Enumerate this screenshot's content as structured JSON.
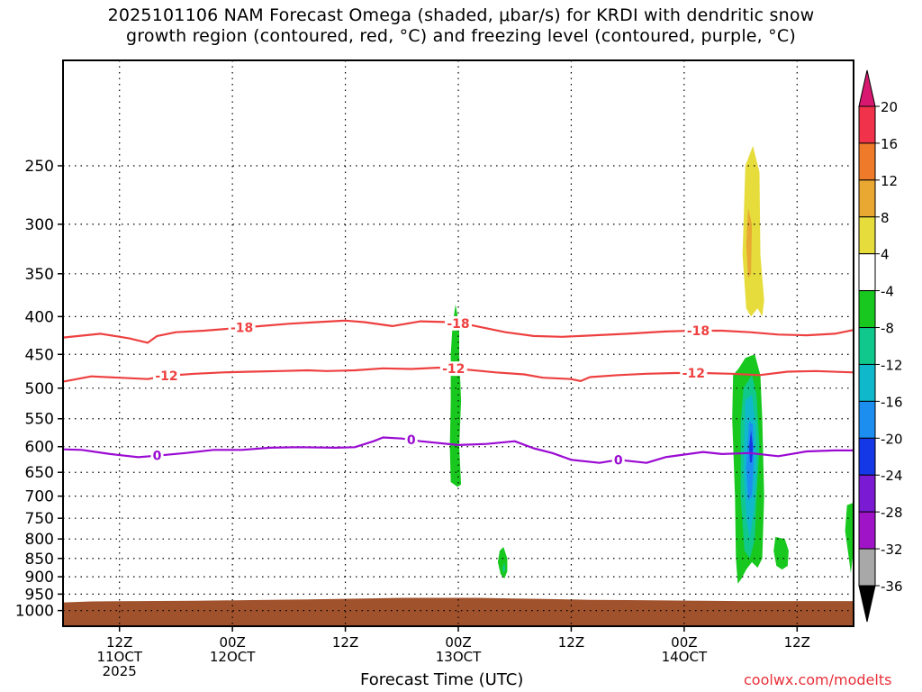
{
  "title": {
    "line1": "2025101106 NAM Forecast Omega (shaded, μbar/s) for KRDI with dendritic snow",
    "line2": "growth region (contoured, red, °C) and freezing level (contoured, purple, °C)"
  },
  "credit": "coolwx.com/modelts",
  "chart_data": {
    "type": "heatmap",
    "xlabel": "Forecast Time (UTC)",
    "ylabel": "",
    "y_scale": "log-pressure",
    "y_units": "hPa",
    "ylim": [
      1050,
      180
    ],
    "x_units": "forecast hour from 2025-10-11 06Z",
    "xlim": [
      0,
      84
    ],
    "grid": true,
    "y_ticks": [
      250,
      300,
      350,
      400,
      450,
      500,
      550,
      600,
      650,
      700,
      750,
      800,
      850,
      900,
      950,
      1000
    ],
    "x_ticks": [
      {
        "hour": 6,
        "lines": [
          "12Z",
          "11OCT",
          "2025"
        ]
      },
      {
        "hour": 18,
        "lines": [
          "00Z",
          "12OCT"
        ]
      },
      {
        "hour": 30,
        "lines": [
          "12Z"
        ]
      },
      {
        "hour": 42,
        "lines": [
          "00Z",
          "13OCT"
        ]
      },
      {
        "hour": 54,
        "lines": [
          "12Z"
        ]
      },
      {
        "hour": 66,
        "lines": [
          "00Z",
          "14OCT"
        ]
      },
      {
        "hour": 78,
        "lines": [
          "12Z"
        ]
      }
    ],
    "colorbar": {
      "labels": [
        "20",
        "16",
        "12",
        "8",
        "4",
        "-4",
        "-8",
        "-12",
        "-16",
        "-20",
        "-24",
        "-28",
        "-32",
        "-36"
      ],
      "colors": [
        "#f0324a",
        "#ee7a2a",
        "#e8a832",
        "#e6dc3c",
        "#ffffff",
        "#18c81e",
        "#10c88c",
        "#10b8cc",
        "#1c8ef0",
        "#1438e6",
        "#7a1ad2",
        "#a014c8",
        "#a8a8a8"
      ],
      "top_arrow_color": "#d81870",
      "bottom_arrow_color": "#000000"
    },
    "contours": [
      {
        "label": "-18",
        "color": "#ee4040",
        "points": [
          [
            0,
            427
          ],
          [
            4,
            422
          ],
          [
            7,
            428
          ],
          [
            9,
            434
          ],
          [
            10,
            425
          ],
          [
            12,
            420
          ],
          [
            15,
            418
          ],
          [
            18,
            415
          ],
          [
            21,
            412
          ],
          [
            24,
            409
          ],
          [
            27,
            407
          ],
          [
            30,
            405
          ],
          [
            32,
            407
          ],
          [
            35,
            412
          ],
          [
            38,
            406
          ],
          [
            41,
            407
          ],
          [
            43,
            410
          ],
          [
            47,
            420
          ],
          [
            50,
            425
          ],
          [
            53,
            426
          ],
          [
            55,
            425
          ],
          [
            60,
            422
          ],
          [
            64,
            419
          ],
          [
            67,
            418
          ],
          [
            70,
            418
          ],
          [
            73,
            420
          ],
          [
            76,
            423
          ],
          [
            79,
            424
          ],
          [
            82,
            422
          ],
          [
            84,
            417
          ]
        ],
        "label_hours": [
          19,
          42,
          67.5
        ]
      },
      {
        "label": "-12",
        "color": "#ee4040",
        "points": [
          [
            0,
            490
          ],
          [
            3,
            482
          ],
          [
            6,
            484
          ],
          [
            9,
            486
          ],
          [
            11,
            481
          ],
          [
            14,
            478
          ],
          [
            17,
            476
          ],
          [
            20,
            475
          ],
          [
            23,
            474
          ],
          [
            26,
            473
          ],
          [
            28,
            474
          ],
          [
            31,
            473
          ],
          [
            34,
            470
          ],
          [
            37,
            471
          ],
          [
            40,
            469
          ],
          [
            43,
            472
          ],
          [
            46,
            476
          ],
          [
            49,
            479
          ],
          [
            51,
            484
          ],
          [
            54,
            486
          ],
          [
            55,
            489
          ],
          [
            56,
            483
          ],
          [
            59,
            480
          ],
          [
            62,
            478
          ],
          [
            65,
            477
          ],
          [
            68,
            477
          ],
          [
            71,
            478
          ],
          [
            74,
            480
          ],
          [
            77,
            475
          ],
          [
            80,
            474
          ],
          [
            84,
            476
          ]
        ],
        "label_hours": [
          11,
          41.5,
          67
        ]
      },
      {
        "label": "0",
        "color": "#9a0ad2",
        "points": [
          [
            0,
            605
          ],
          [
            2,
            606
          ],
          [
            5,
            614
          ],
          [
            8,
            620
          ],
          [
            10,
            617
          ],
          [
            13,
            612
          ],
          [
            16,
            606
          ],
          [
            19,
            606
          ],
          [
            22,
            602
          ],
          [
            25,
            601
          ],
          [
            29,
            602
          ],
          [
            31,
            601
          ],
          [
            33,
            590
          ],
          [
            34,
            583
          ],
          [
            36,
            585
          ],
          [
            38,
            590
          ],
          [
            42,
            597
          ],
          [
            45,
            595
          ],
          [
            48,
            590
          ],
          [
            50,
            603
          ],
          [
            52,
            612
          ],
          [
            54,
            625
          ],
          [
            57,
            631
          ],
          [
            59,
            625
          ],
          [
            62,
            631
          ],
          [
            64,
            620
          ],
          [
            66,
            615
          ],
          [
            68,
            610
          ],
          [
            70,
            614
          ],
          [
            73,
            612
          ],
          [
            76,
            618
          ],
          [
            79,
            609
          ],
          [
            82,
            607
          ],
          [
            84,
            607
          ]
        ],
        "label_hours": [
          10,
          37,
          59
        ]
      }
    ],
    "omega_regions": [
      {
        "value": "-4",
        "color": "#18c81e",
        "polygon": [
          [
            41.7,
            385
          ],
          [
            42.1,
            410
          ],
          [
            42.1,
            450
          ],
          [
            42.3,
            520
          ],
          [
            42.1,
            600
          ],
          [
            42.3,
            675
          ],
          [
            41.9,
            680
          ],
          [
            41.2,
            670
          ],
          [
            41.1,
            600
          ],
          [
            41.2,
            520
          ],
          [
            41.2,
            450
          ],
          [
            41.4,
            410
          ]
        ]
      },
      {
        "value": "-4",
        "color": "#18c81e",
        "polygon": [
          [
            46.8,
            820
          ],
          [
            47.2,
            850
          ],
          [
            47.2,
            885
          ],
          [
            46.9,
            905
          ],
          [
            46.5,
            893
          ],
          [
            46.2,
            860
          ],
          [
            46.4,
            830
          ]
        ]
      },
      {
        "value": "-8",
        "color": "#10c88c",
        "polygon": [
          [
            46.9,
            860
          ],
          [
            47.0,
            880
          ],
          [
            46.8,
            890
          ],
          [
            46.7,
            875
          ]
        ]
      },
      {
        "value": "-4",
        "color": "#18c81e",
        "polygon": [
          [
            71.8,
            470
          ],
          [
            72.5,
            455
          ],
          [
            73.5,
            450
          ],
          [
            74.1,
            480
          ],
          [
            74.3,
            550
          ],
          [
            74.5,
            700
          ],
          [
            74.3,
            850
          ],
          [
            73.8,
            875
          ],
          [
            73.2,
            860
          ],
          [
            72.6,
            880
          ],
          [
            72.1,
            905
          ],
          [
            71.7,
            920
          ],
          [
            71.5,
            850
          ],
          [
            71.4,
            700
          ],
          [
            71.1,
            550
          ],
          [
            71.2,
            480
          ]
        ]
      },
      {
        "value": "-8",
        "color": "#10c88c",
        "polygon": [
          [
            72.3,
            500
          ],
          [
            73.2,
            480
          ],
          [
            73.7,
            510
          ],
          [
            74.0,
            600
          ],
          [
            73.7,
            700
          ],
          [
            73.5,
            800
          ],
          [
            73.0,
            850
          ],
          [
            72.4,
            830
          ],
          [
            72.0,
            700
          ],
          [
            72.0,
            560
          ]
        ]
      },
      {
        "value": "-12",
        "color": "#10b8cc",
        "polygon": [
          [
            72.5,
            520
          ],
          [
            73.2,
            510
          ],
          [
            73.6,
            560
          ],
          [
            73.7,
            650
          ],
          [
            73.4,
            730
          ],
          [
            73.0,
            800
          ],
          [
            72.6,
            750
          ],
          [
            72.3,
            640
          ]
        ]
      },
      {
        "value": "-16",
        "color": "#1c8ef0",
        "polygon": [
          [
            72.9,
            555
          ],
          [
            73.3,
            560
          ],
          [
            73.4,
            620
          ],
          [
            73.2,
            700
          ],
          [
            72.8,
            710
          ],
          [
            72.6,
            640
          ]
        ]
      },
      {
        "value": "-20",
        "color": "#1438e6",
        "polygon": [
          [
            73.1,
            570
          ],
          [
            73.3,
            600
          ],
          [
            73.2,
            630
          ],
          [
            73.0,
            630
          ],
          [
            72.9,
            600
          ]
        ]
      },
      {
        "value": "-4",
        "color": "#18c81e",
        "polygon": [
          [
            75.7,
            795
          ],
          [
            76.7,
            800
          ],
          [
            77.1,
            830
          ],
          [
            77.0,
            870
          ],
          [
            76.4,
            880
          ],
          [
            75.8,
            870
          ],
          [
            75.5,
            830
          ]
        ]
      },
      {
        "value": "-4",
        "color": "#18c81e",
        "polygon": [
          [
            83.3,
            720
          ],
          [
            83.9,
            715
          ],
          [
            84,
            830
          ],
          [
            83.7,
            890
          ],
          [
            83.5,
            850
          ],
          [
            83.1,
            780
          ]
        ]
      },
      {
        "value": "4",
        "color": "#e6dc3c",
        "polygon": [
          [
            72.5,
            250
          ],
          [
            73.3,
            235
          ],
          [
            74.0,
            255
          ],
          [
            74.1,
            330
          ],
          [
            74.5,
            380
          ],
          [
            74.3,
            400
          ],
          [
            73.8,
            390
          ],
          [
            73.1,
            400
          ],
          [
            72.6,
            390
          ],
          [
            72.2,
            330
          ]
        ]
      },
      {
        "value": "8",
        "color": "#e8a832",
        "polygon": [
          [
            72.8,
            285
          ],
          [
            73.2,
            300
          ],
          [
            73.1,
            350
          ],
          [
            72.8,
            355
          ],
          [
            72.6,
            320
          ]
        ]
      }
    ],
    "surface": {
      "color": "#a0522d",
      "top_points": [
        [
          0,
          975
        ],
        [
          3,
          972
        ],
        [
          8,
          971
        ],
        [
          14,
          970
        ],
        [
          20,
          968
        ],
        [
          26,
          966
        ],
        [
          32,
          963
        ],
        [
          36,
          961
        ],
        [
          40,
          961
        ],
        [
          44,
          961
        ],
        [
          48,
          963
        ],
        [
          52,
          965
        ],
        [
          56,
          967
        ],
        [
          60,
          968
        ],
        [
          64,
          969
        ],
        [
          68,
          970
        ],
        [
          72,
          971
        ],
        [
          76,
          971
        ],
        [
          80,
          971
        ],
        [
          84,
          971
        ]
      ]
    }
  }
}
